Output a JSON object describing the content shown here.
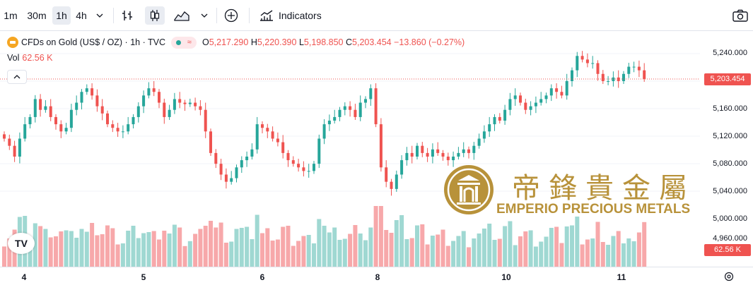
{
  "toolbar": {
    "intervals": [
      "1m",
      "30m",
      "1h",
      "4h"
    ],
    "active_interval": "1h",
    "indicators_label": "Indicators"
  },
  "legend": {
    "symbol": "CFDs on Gold (US$ / OZ) · 1h · TVC",
    "open_key": "O",
    "open": "5,217.290",
    "high_key": "H",
    "high": "5,220.390",
    "low_key": "L",
    "low": "5,198.850",
    "close_key": "C",
    "close": "5,203.454",
    "change": "−13.860 (−0.27%)"
  },
  "volume_legend": {
    "label": "Vol",
    "value": "62.56 K"
  },
  "price_axis": {
    "labels": [
      "5,240.000",
      "5,160.000",
      "5,120.000",
      "5,080.000",
      "5,040.000",
      "5,000.000",
      "4,960.000"
    ],
    "last_price": "5,203.454",
    "last_volume": "62.56 K"
  },
  "time_axis": {
    "labels": [
      "4",
      "5",
      "6",
      "8",
      "10",
      "11"
    ]
  },
  "watermark": {
    "chinese": "帝鋒貴金屬",
    "english": "EMPERIO PRECIOUS METALS"
  },
  "colors": {
    "up": "#26a69a",
    "down": "#ef5350",
    "up_volume": "#9fd8d2",
    "down_volume": "#f7a8aa",
    "gold": "#b8923a"
  },
  "chart_data": {
    "type": "candlestick",
    "ylim": [
      4990,
      5250
    ],
    "close_series": [
      5120,
      5110,
      5095,
      5120,
      5140,
      5150,
      5175,
      5160,
      5165,
      5150,
      5140,
      5130,
      5135,
      5160,
      5170,
      5185,
      5190,
      5180,
      5165,
      5155,
      5140,
      5135,
      5130,
      5130,
      5140,
      5150,
      5165,
      5180,
      5190,
      5185,
      5170,
      5150,
      5160,
      5175,
      5170,
      5168,
      5170,
      5165,
      5160,
      5130,
      5100,
      5085,
      5070,
      5060,
      5065,
      5080,
      5090,
      5095,
      5105,
      5140,
      5135,
      5130,
      5120,
      5115,
      5100,
      5090,
      5085,
      5080,
      5075,
      5075,
      5085,
      5120,
      5140,
      5145,
      5150,
      5160,
      5165,
      5160,
      5150,
      5170,
      5175,
      5190,
      5140,
      5080,
      5060,
      5050,
      5070,
      5090,
      5100,
      5095,
      5110,
      5100,
      5095,
      5105,
      5100,
      5095,
      5090,
      5095,
      5100,
      5105,
      5100,
      5110,
      5120,
      5130,
      5140,
      5150,
      5145,
      5160,
      5175,
      5180,
      5170,
      5160,
      5165,
      5170,
      5175,
      5180,
      5190,
      5185,
      5180,
      5200,
      5215,
      5235,
      5230,
      5225,
      5225,
      5210,
      5200,
      5200,
      5205,
      5200,
      5210,
      5220,
      5220,
      5215,
      5203
    ]
  }
}
